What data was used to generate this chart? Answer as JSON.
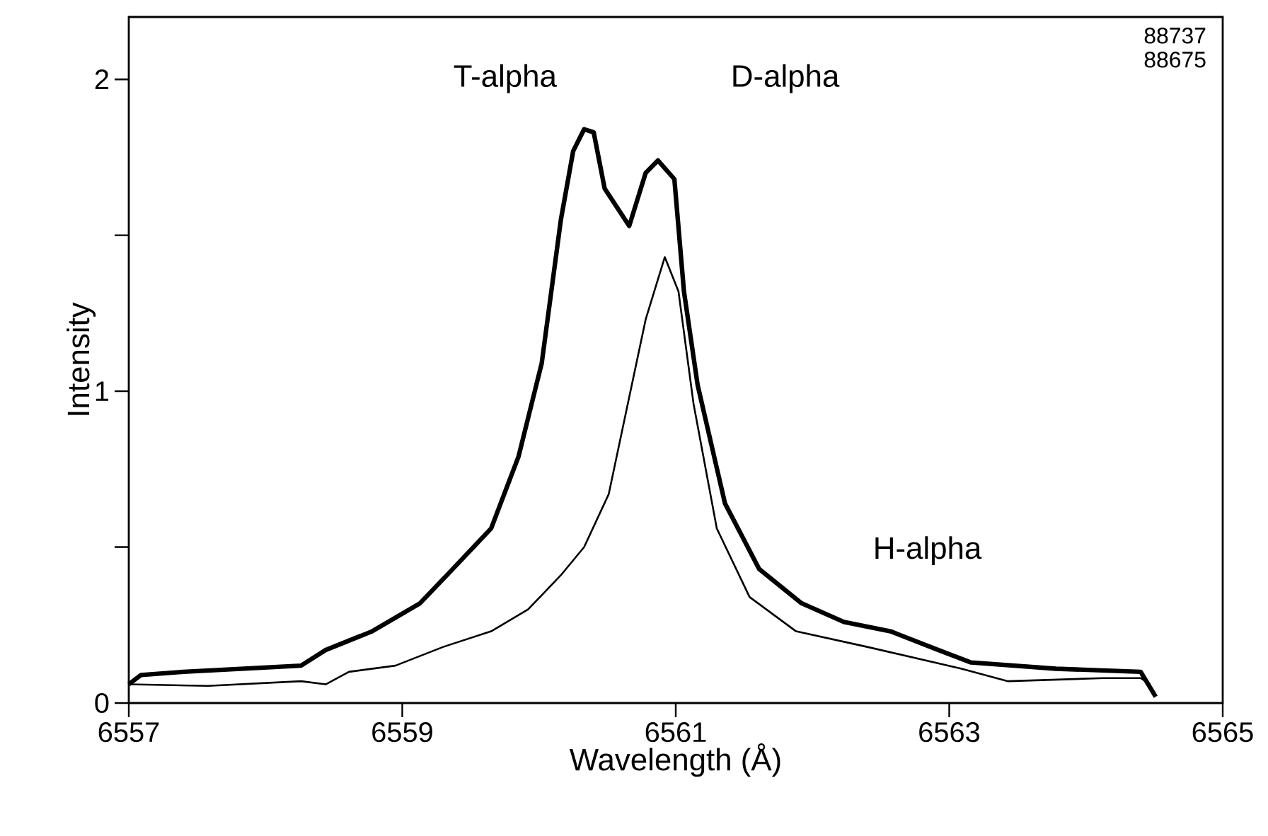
{
  "chart_data": {
    "type": "line",
    "xlabel": "Wavelength (Å)",
    "ylabel": "Intensity",
    "xlim": [
      6557,
      6565
    ],
    "ylim": [
      0,
      2.2
    ],
    "xticks": [
      6557,
      6559,
      6561,
      6563,
      6565
    ],
    "yticks": [
      0,
      {
        "value": 0.5,
        "label": null
      },
      1,
      {
        "value": 1.5,
        "label": null
      },
      2
    ],
    "annotations": [
      "T-alpha",
      "D-alpha",
      "H-alpha",
      "88737",
      "88675"
    ],
    "series": [
      {
        "color": "#000000",
        "x": [
          6557,
          6557.09,
          6557.4,
          6558.26,
          6558.44,
          6558.78,
          6559.13,
          6559.37,
          6559.65,
          6559.85,
          6560.02,
          6560.16,
          6560.25,
          6560.33,
          6560.4,
          6560.48,
          6560.66,
          6560.78,
          6560.87,
          6560.99,
          6561.06,
          6561.16,
          6561.36,
          6561.61,
          6561.92,
          6562.23,
          6562.57,
          6562.92,
          6563.16,
          6563.78,
          6564.4,
          6564.51
        ],
        "values": [
          0.06,
          0.09,
          0.1,
          0.12,
          0.17,
          0.23,
          0.32,
          0.43,
          0.56,
          0.79,
          1.09,
          1.55,
          1.77,
          1.84,
          1.83,
          1.65,
          1.53,
          1.7,
          1.74,
          1.68,
          1.32,
          1.02,
          0.64,
          0.43,
          0.32,
          0.26,
          0.23,
          0.17,
          0.13,
          0.11,
          0.1,
          0.02
        ]
      },
      {
        "color": "#000000",
        "x": [
          6557,
          6557.58,
          6558.26,
          6558.44,
          6558.61,
          6558.95,
          6559.3,
          6559.65,
          6559.92,
          6560.16,
          6560.33,
          6560.51,
          6560.64,
          6560.78,
          6560.92,
          6561.02,
          6561.13,
          6561.3,
          6561.54,
          6561.88,
          6562.4,
          6563.09,
          6563.43,
          6564.13,
          6564.4,
          6564.47
        ],
        "values": [
          0.06,
          0.055,
          0.07,
          0.06,
          0.1,
          0.12,
          0.18,
          0.23,
          0.3,
          0.41,
          0.5,
          0.67,
          0.94,
          1.23,
          1.43,
          1.32,
          0.96,
          0.56,
          0.34,
          0.23,
          0.18,
          0.11,
          0.07,
          0.08,
          0.08,
          0.06
        ]
      }
    ]
  }
}
